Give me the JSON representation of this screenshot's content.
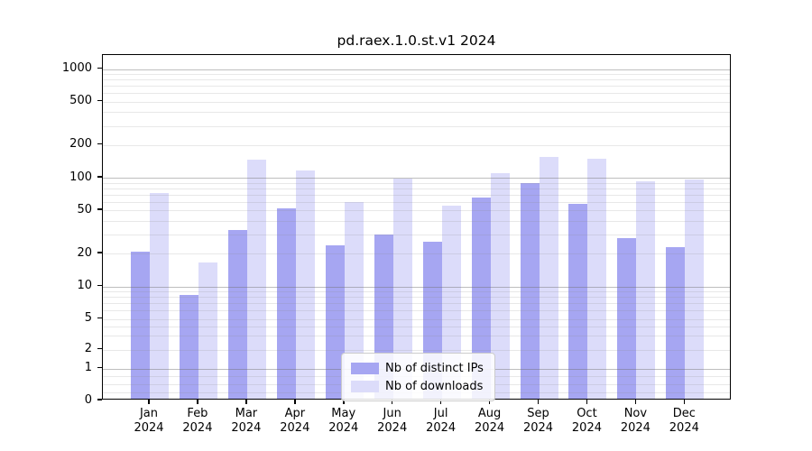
{
  "chart_data": {
    "type": "bar",
    "title": "pd.raex.1.0.st.v1 2024",
    "categories": [
      "Jan",
      "Feb",
      "Mar",
      "Apr",
      "May",
      "Jun",
      "Jul",
      "Aug",
      "Sep",
      "Oct",
      "Nov",
      "Dec"
    ],
    "category_year": "2024",
    "series": [
      {
        "name": "Nb of distinct IPs",
        "color": "#a6a6f2",
        "values": [
          20,
          8,
          32,
          50,
          23,
          29,
          25,
          63,
          86,
          55,
          27,
          22
        ]
      },
      {
        "name": "Nb of downloads",
        "color": "#dcdcfa",
        "values": [
          70,
          16,
          140,
          113,
          58,
          95,
          53,
          105,
          149,
          145,
          90,
          93
        ]
      }
    ],
    "yscale": "symlog",
    "y_ticks": [
      0,
      1,
      2,
      5,
      10,
      20,
      50,
      100,
      200,
      500,
      1000
    ],
    "ylim": [
      0,
      1400
    ],
    "xlabel": "",
    "ylabel": "",
    "grid": "on",
    "legend_position": "lower center"
  }
}
